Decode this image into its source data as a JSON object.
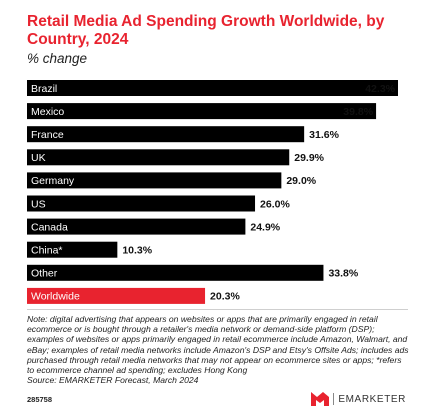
{
  "header": {
    "title": "Retail Media Ad Spending Growth Worldwide, by Country, 2024",
    "subtitle": "% change"
  },
  "chart_data": {
    "type": "bar",
    "orientation": "horizontal",
    "title": "Retail Media Ad Spending Growth Worldwide, by Country, 2024",
    "subtitle": "% change",
    "categories": [
      "Brazil",
      "Mexico",
      "France",
      "UK",
      "Germany",
      "US",
      "Canada",
      "China*",
      "Other",
      "Worldwide"
    ],
    "values": [
      42.3,
      39.8,
      31.6,
      29.9,
      29.0,
      26.0,
      24.9,
      10.3,
      33.8,
      20.3
    ],
    "value_labels": [
      "42.3%",
      "39.8%",
      "31.6%",
      "29.9%",
      "29.0%",
      "26.0%",
      "24.9%",
      "10.3%",
      "33.8%",
      "20.3%"
    ],
    "xlim": [
      0,
      42.3
    ],
    "grid": false,
    "legend": "none",
    "colors": {
      "bar": "#000000",
      "highlight": "#e8232f",
      "highlight_category": "Worldwide"
    }
  },
  "footer": {
    "note": "Note: digital advertising that appears on websites or apps that are primarily engaged in retail ecommerce or is bought through a retailer's media network or demand-side platform (DSP); examples of websites or apps primarily engaged in retail ecommerce include Amazon, Walmart, and eBay; examples of retail media networks include Amazon's DSP and Etsy's Offsite Ads; includes ads purchased through retail media networks that may not appear on ecommerce sites or apps; *refers to ecommerce channel ad spending; excludes Hong Kong",
    "source": "Source: EMARKETER Forecast, March 2024",
    "chart_id": "285758",
    "brand": "EMARKETER"
  },
  "icons": {
    "brand_logo": "emarketer-logo-icon"
  }
}
